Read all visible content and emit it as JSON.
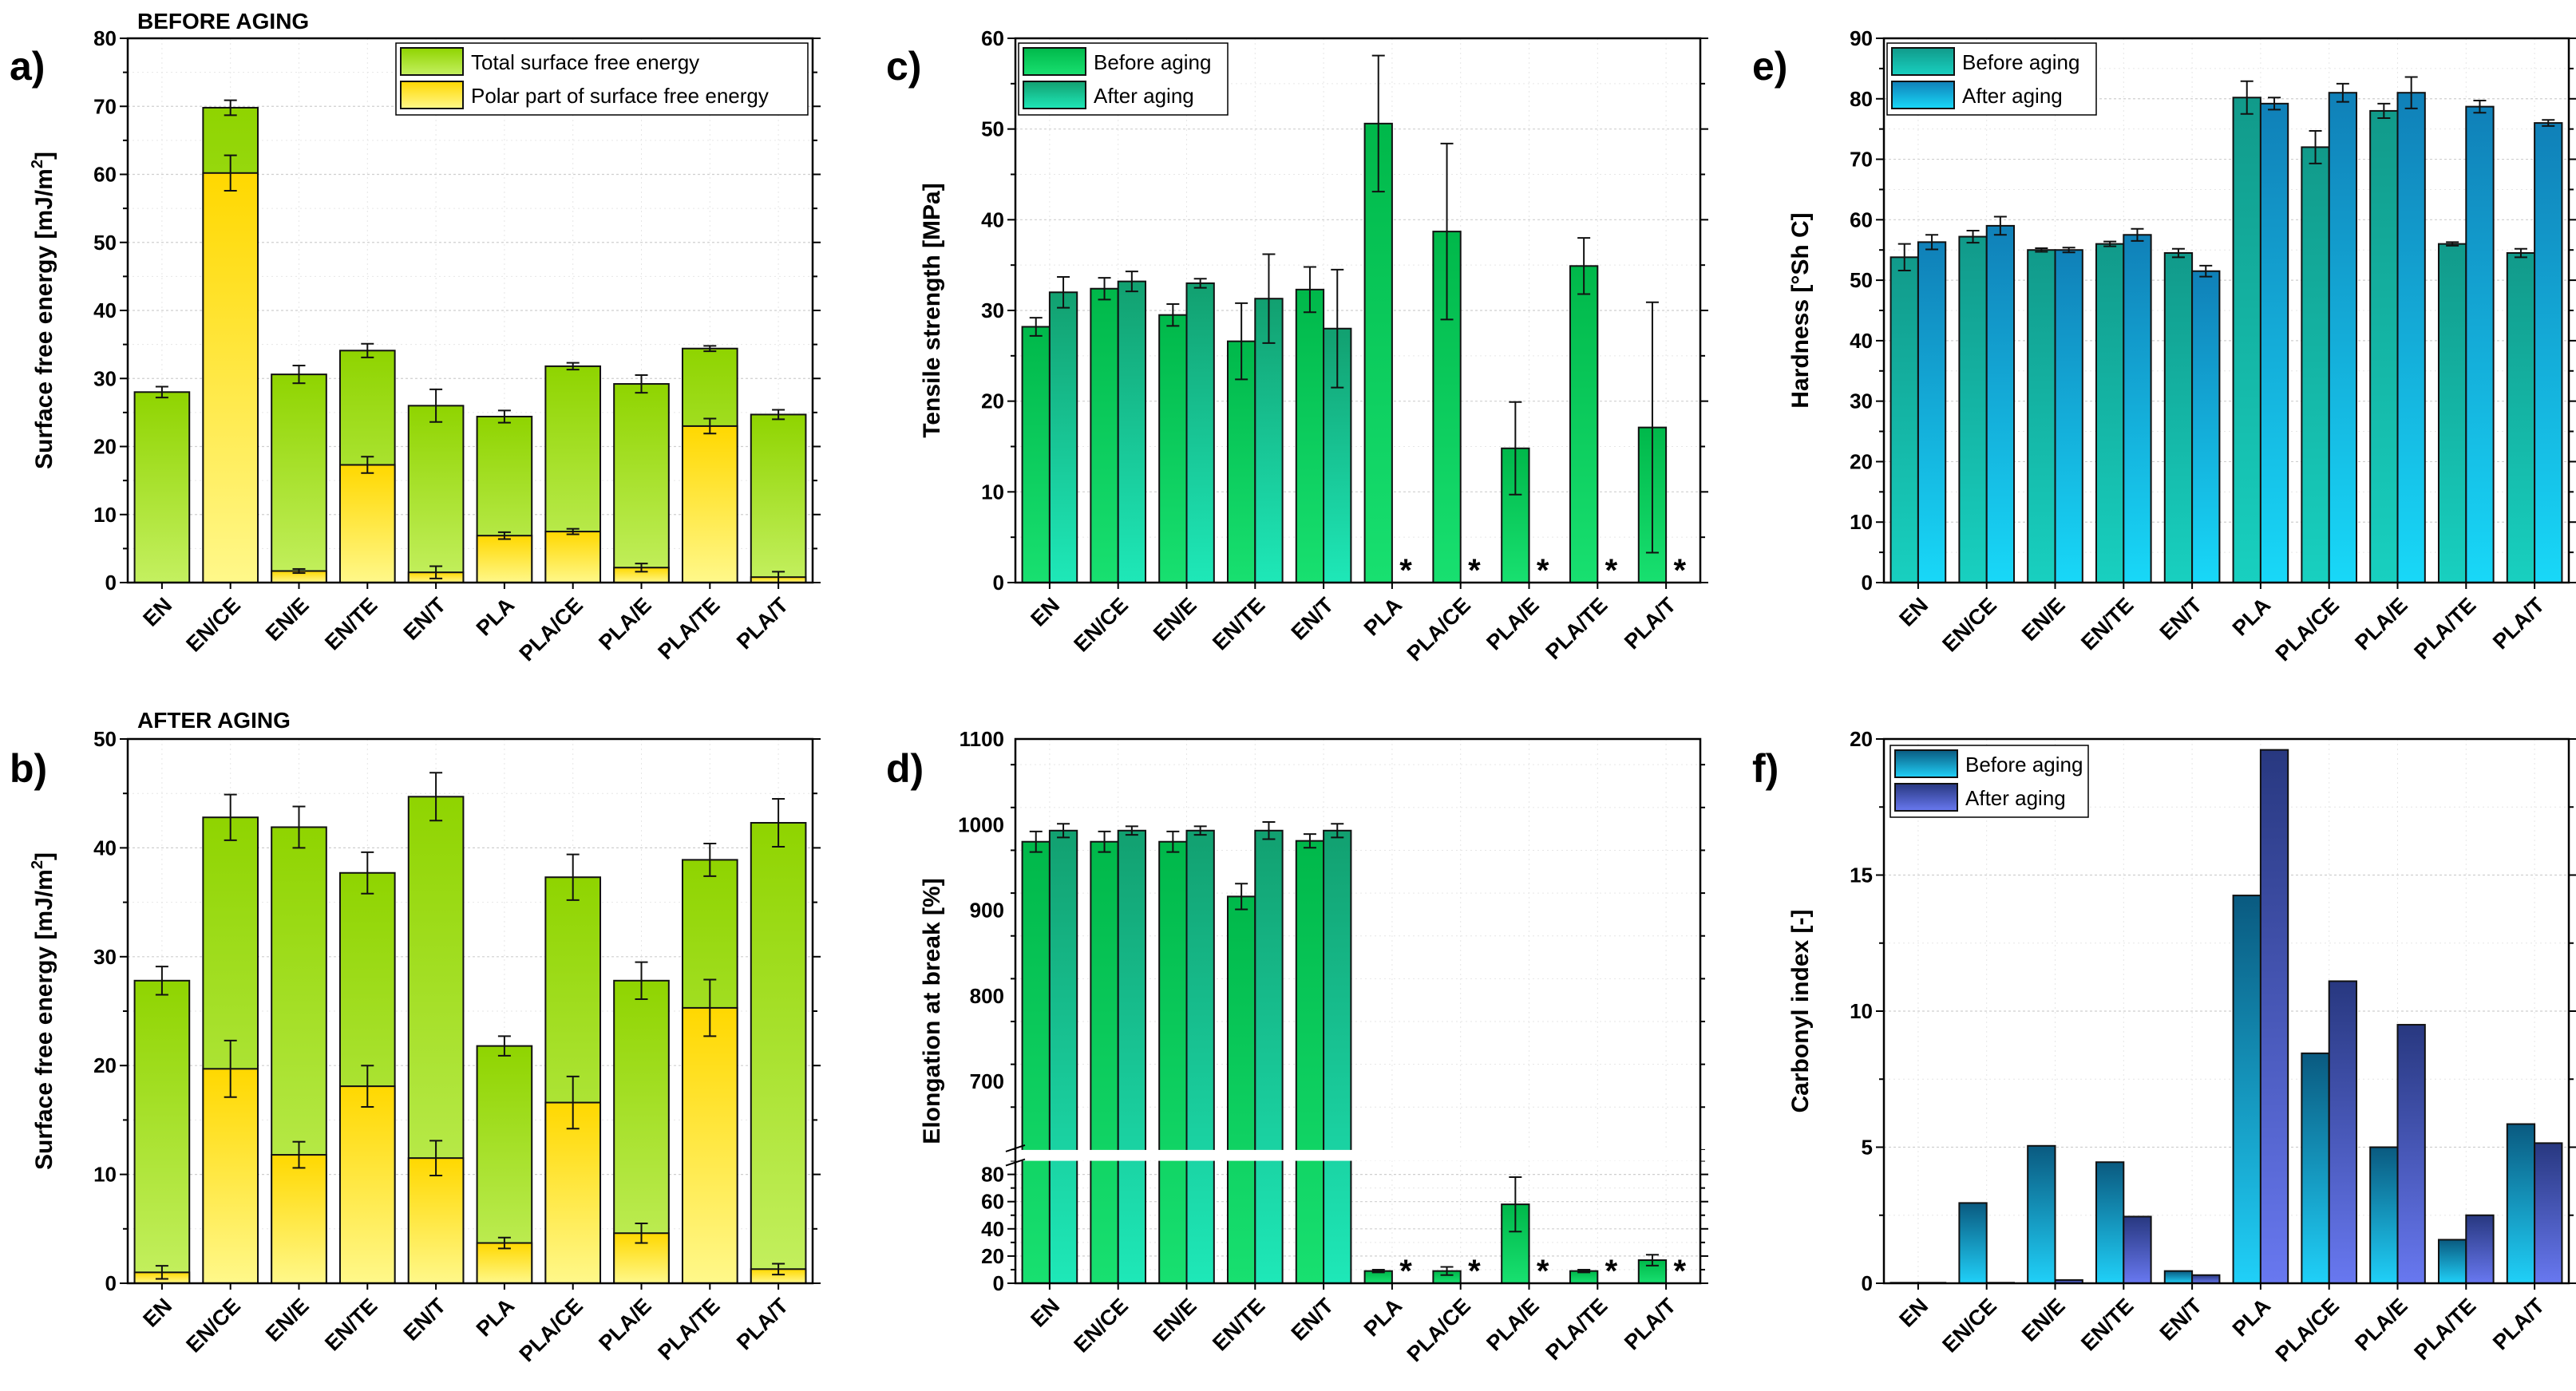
{
  "colors": {
    "green_top": "#8fd400",
    "green_bottom": "#c4f060",
    "yellow_top": "#ffd800",
    "yellow_bottom": "#fff88a",
    "tg_before_top": "#00b84a",
    "tg_before_bottom": "#18e070",
    "tg_after_top": "#12a070",
    "tg_after_bottom": "#1ee8b8",
    "cy_before_top": "#119a8a",
    "cy_before_bottom": "#18d0c0",
    "cy_after_top": "#1080b8",
    "cy_after_bottom": "#18d8f8",
    "bl_before_top": "#0a5a80",
    "bl_before_bottom": "#20d0f8",
    "bl_after_top": "#283880",
    "bl_after_bottom": "#6878f0"
  },
  "chart_data": [
    {
      "id": "a",
      "panel_label": "a)",
      "header": "BEFORE AGING",
      "type": "bar",
      "mode": "overlay",
      "ylabel": "Surface free energy [mJ/m",
      "ylabel_sup": "2",
      "ylabel_end": "]",
      "ylim": [
        0,
        80
      ],
      "yticks": [
        0,
        10,
        20,
        30,
        40,
        50,
        60,
        70,
        80
      ],
      "legend": [
        "Total surface free energy",
        "Polar part of surface free energy"
      ],
      "categories": [
        "EN",
        "EN/CE",
        "EN/E",
        "EN/TE",
        "EN/T",
        "PLA",
        "PLA/CE",
        "PLA/E",
        "PLA/TE",
        "PLA/T"
      ],
      "series": [
        {
          "name": "Total surface free energy",
          "values": [
            28.0,
            69.8,
            30.6,
            34.1,
            26.0,
            24.4,
            31.8,
            29.2,
            34.4,
            24.7
          ],
          "errors": [
            0.8,
            1.1,
            1.3,
            1.0,
            2.4,
            0.9,
            0.5,
            1.3,
            0.4,
            0.7
          ]
        },
        {
          "name": "Polar part of surface free energy",
          "values": [
            0,
            60.2,
            1.7,
            17.3,
            1.5,
            6.9,
            7.5,
            2.2,
            23.0,
            0.8
          ],
          "errors": [
            0,
            2.6,
            0.3,
            1.2,
            0.9,
            0.5,
            0.4,
            0.6,
            1.1,
            0.8
          ]
        }
      ],
      "colors": [
        [
          "#8fd400",
          "#c4f060"
        ],
        [
          "#ffd800",
          "#fff88a"
        ]
      ]
    },
    {
      "id": "b",
      "panel_label": "b)",
      "header": "AFTER AGING",
      "type": "bar",
      "mode": "overlay",
      "ylabel": "Surface free energy [mJ/m",
      "ylabel_sup": "2",
      "ylabel_end": "]",
      "ylim": [
        0,
        50
      ],
      "yticks": [
        0,
        10,
        20,
        30,
        40,
        50
      ],
      "legend": [],
      "categories": [
        "EN",
        "EN/CE",
        "EN/E",
        "EN/TE",
        "EN/T",
        "PLA",
        "PLA/CE",
        "PLA/E",
        "PLA/TE",
        "PLA/T"
      ],
      "series": [
        {
          "name": "Total surface free energy",
          "values": [
            27.8,
            42.8,
            41.9,
            37.7,
            44.7,
            21.8,
            37.3,
            27.8,
            38.9,
            42.3
          ],
          "errors": [
            1.3,
            2.1,
            1.9,
            1.9,
            2.2,
            0.9,
            2.1,
            1.7,
            1.5,
            2.2
          ]
        },
        {
          "name": "Polar part of surface free energy",
          "values": [
            1.0,
            19.7,
            11.8,
            18.1,
            11.5,
            3.7,
            16.6,
            4.6,
            25.3,
            1.3
          ],
          "errors": [
            0.6,
            2.6,
            1.2,
            1.9,
            1.6,
            0.5,
            2.4,
            0.9,
            2.6,
            0.5
          ]
        }
      ],
      "colors": [
        [
          "#8fd400",
          "#c4f060"
        ],
        [
          "#ffd800",
          "#fff88a"
        ]
      ]
    },
    {
      "id": "c",
      "panel_label": "c)",
      "header": "",
      "type": "bar",
      "mode": "grouped",
      "ylabel": "Tensile strength [MPa]",
      "ylabel_sup": "",
      "ylabel_end": "",
      "ylim": [
        0,
        60
      ],
      "yticks": [
        0,
        10,
        20,
        30,
        40,
        50,
        60
      ],
      "legend": [
        "Before aging",
        "After aging"
      ],
      "categories": [
        "EN",
        "EN/CE",
        "EN/E",
        "EN/TE",
        "EN/T",
        "PLA",
        "PLA/CE",
        "PLA/E",
        "PLA/TE",
        "PLA/T"
      ],
      "series": [
        {
          "name": "Before aging",
          "values": [
            28.2,
            32.4,
            29.5,
            26.6,
            32.3,
            50.6,
            38.7,
            14.8,
            34.9,
            17.1
          ],
          "errors": [
            1.0,
            1.2,
            1.2,
            4.2,
            2.5,
            7.5,
            9.7,
            5.1,
            3.1,
            13.8
          ]
        },
        {
          "name": "After aging",
          "values": [
            32.0,
            33.2,
            33.0,
            31.3,
            28.0,
            null,
            null,
            null,
            null,
            null
          ],
          "errors": [
            1.7,
            1.1,
            0.5,
            4.9,
            6.5,
            null,
            null,
            null,
            null,
            null
          ]
        }
      ],
      "missing_marker": "*",
      "colors": [
        [
          "#00b84a",
          "#18e070"
        ],
        [
          "#12a070",
          "#1ee8b8"
        ]
      ]
    },
    {
      "id": "d",
      "panel_label": "d)",
      "header": "",
      "type": "bar",
      "mode": "grouped",
      "ylabel": "Elongation at break [%]",
      "ylabel_sup": "",
      "ylabel_end": "",
      "broken_axis": true,
      "ylim_lower": [
        0,
        90
      ],
      "yticks_lower": [
        0,
        20,
        40,
        60,
        80
      ],
      "ylim_upper": [
        620,
        1100
      ],
      "yticks_upper": [
        700,
        800,
        900,
        1000,
        1100
      ],
      "legend": [],
      "categories": [
        "EN",
        "EN/CE",
        "EN/E",
        "EN/TE",
        "EN/T",
        "PLA",
        "PLA/CE",
        "PLA/E",
        "PLA/TE",
        "PLA/T"
      ],
      "series": [
        {
          "name": "Before aging",
          "values": [
            980,
            980,
            980,
            916,
            981,
            9,
            9,
            58,
            9,
            17
          ],
          "errors": [
            12,
            12,
            12,
            15,
            8,
            1,
            3,
            20,
            1,
            4
          ]
        },
        {
          "name": "After aging",
          "values": [
            993,
            993,
            993,
            993,
            993,
            null,
            null,
            null,
            null,
            null
          ],
          "errors": [
            8,
            5,
            5,
            10,
            8,
            null,
            null,
            null,
            null,
            null
          ]
        }
      ],
      "missing_marker": "*",
      "colors": [
        [
          "#00b84a",
          "#18e070"
        ],
        [
          "#12a070",
          "#1ee8b8"
        ]
      ]
    },
    {
      "id": "e",
      "panel_label": "e)",
      "header": "",
      "type": "bar",
      "mode": "grouped",
      "ylabel": "Hardness [°Sh C]",
      "ylabel_sup": "",
      "ylabel_end": "",
      "ylim": [
        0,
        90
      ],
      "yticks": [
        0,
        10,
        20,
        30,
        40,
        50,
        60,
        70,
        80,
        90
      ],
      "legend": [
        "Before aging",
        "After aging"
      ],
      "categories": [
        "EN",
        "EN/CE",
        "EN/E",
        "EN/TE",
        "EN/T",
        "PLA",
        "PLA/CE",
        "PLA/E",
        "PLA/TE",
        "PLA/T"
      ],
      "series": [
        {
          "name": "Before aging",
          "values": [
            53.8,
            57.2,
            55.0,
            56.0,
            54.5,
            80.2,
            72.0,
            78.0,
            56.0,
            54.5
          ],
          "errors": [
            2.2,
            1.0,
            0.3,
            0.4,
            0.7,
            2.7,
            2.7,
            1.2,
            0.3,
            0.7
          ]
        },
        {
          "name": "After aging",
          "values": [
            56.3,
            59.0,
            55.0,
            57.5,
            51.5,
            79.2,
            81.0,
            81.0,
            78.7,
            76.0
          ],
          "errors": [
            1.2,
            1.5,
            0.4,
            1.0,
            0.9,
            1.0,
            1.5,
            2.6,
            1.0,
            0.5
          ]
        }
      ],
      "colors": [
        [
          "#119a8a",
          "#18d0c0"
        ],
        [
          "#1080b8",
          "#18d8f8"
        ]
      ]
    },
    {
      "id": "f",
      "panel_label": "f)",
      "header": "",
      "type": "bar",
      "mode": "grouped",
      "ylabel": "Carbonyl index [-]",
      "ylabel_sup": "",
      "ylabel_end": "",
      "ylim": [
        0,
        20
      ],
      "yticks": [
        0,
        5,
        10,
        15,
        20
      ],
      "legend": [
        "Before aging",
        "After aging"
      ],
      "categories": [
        "EN",
        "EN/CE",
        "EN/E",
        "EN/TE",
        "EN/T",
        "PLA",
        "PLA/CE",
        "PLA/E",
        "PLA/TE",
        "PLA/T"
      ],
      "series": [
        {
          "name": "Before aging",
          "values": [
            0.02,
            2.95,
            5.05,
            4.45,
            0.45,
            14.25,
            8.45,
            5.0,
            1.6,
            5.85
          ]
        },
        {
          "name": "After aging",
          "values": [
            0.02,
            0.02,
            0.12,
            2.45,
            0.3,
            19.6,
            11.1,
            9.5,
            2.5,
            5.15
          ]
        }
      ],
      "colors": [
        [
          "#0a5a80",
          "#20d0f8"
        ],
        [
          "#283880",
          "#6878f0"
        ]
      ]
    }
  ]
}
